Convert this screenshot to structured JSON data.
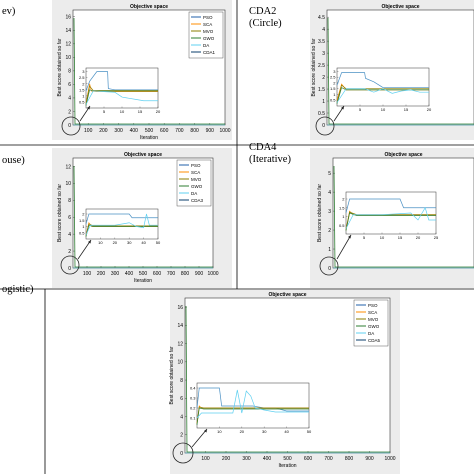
{
  "cells": [
    {
      "id": "cda1",
      "label_lines": [
        "ev)"
      ],
      "title": "Objective space",
      "xlabel": "Iteration",
      "ylabel": "Best score obtained so far",
      "yticks": [
        0,
        2,
        4,
        6,
        8,
        10,
        12,
        14,
        16
      ],
      "xticks": [
        100,
        200,
        300,
        400,
        500,
        600,
        700,
        800,
        900,
        1000
      ],
      "xlim": [
        0,
        1000
      ],
      "ylim": [
        0,
        17
      ],
      "legend": [
        "PSO",
        "SCA",
        "MVO",
        "GWO",
        "DA",
        "CDA1"
      ],
      "inset": {
        "xticks": [
          5,
          10,
          15,
          20
        ],
        "yticks": [
          0.5,
          1,
          1.5,
          2,
          2.5,
          3
        ],
        "xlim": [
          0,
          20
        ],
        "ylim": [
          0,
          3.3
        ],
        "series": [
          {
            "color": "#4a90c4",
            "x": [
              0,
              1,
              3,
              5,
              6,
              6.2,
              8,
              20
            ],
            "y": [
              1.4,
              2.2,
              3.0,
              3.0,
              3.0,
              1.6,
              1.5,
              1.5
            ]
          },
          {
            "color": "#ff8c00",
            "x": [
              0,
              1,
              1.5,
              3,
              20
            ],
            "y": [
              0.4,
              2.0,
              1.4,
              1.35,
              1.35
            ]
          },
          {
            "color": "#8b7d00",
            "x": [
              0,
              1,
              2,
              20
            ],
            "y": [
              0.3,
              1.8,
              1.45,
              1.45
            ]
          },
          {
            "color": "#2e7d32",
            "x": [
              0,
              1,
              2,
              20
            ],
            "y": [
              0.2,
              1.5,
              1.4,
              1.4
            ]
          },
          {
            "color": "#5fd0f0",
            "x": [
              0,
              2,
              8,
              10,
              12,
              14,
              16,
              20
            ],
            "y": [
              0.3,
              1.4,
              1.3,
              0.9,
              0.8,
              0.7,
              0.6,
              0.6
            ]
          }
        ]
      }
    },
    {
      "id": "cda2",
      "label_lines": [
        "CDA2",
        "(Circle)"
      ],
      "title": "Objective space",
      "xlabel": "",
      "ylabel": "Best score obtained so far",
      "yticks": [
        0,
        0.5,
        1,
        1.5,
        2,
        2.5,
        3,
        3.5,
        4,
        4.5
      ],
      "xticks": [],
      "xlim": [
        0,
        1000
      ],
      "ylim": [
        0,
        4.8
      ],
      "legend": [],
      "inset": {
        "xticks": [
          5,
          10,
          15,
          20
        ],
        "yticks": [
          0.5,
          1,
          1.5,
          2,
          2.5,
          3
        ],
        "xlim": [
          0,
          20
        ],
        "ylim": [
          0,
          3.3
        ],
        "series": [
          {
            "color": "#4a90c4",
            "x": [
              0,
              1,
              4,
              6,
              6.2,
              8,
              10,
              20
            ],
            "y": [
              1.8,
              2.9,
              2.9,
              2.9,
              2.4,
              2.1,
              1.6,
              1.6
            ]
          },
          {
            "color": "#ff8c00",
            "x": [
              0,
              1,
              2,
              20
            ],
            "y": [
              0.5,
              1.9,
              1.4,
              1.4
            ]
          },
          {
            "color": "#8b7d00",
            "x": [
              0,
              1,
              2,
              20
            ],
            "y": [
              0.3,
              1.8,
              1.5,
              1.5
            ]
          },
          {
            "color": "#2e7d32",
            "x": [
              0,
              1,
              2,
              20
            ],
            "y": [
              0.2,
              1.6,
              1.4,
              1.4
            ]
          },
          {
            "color": "#5fd0f0",
            "x": [
              0,
              2,
              6,
              8,
              10,
              12,
              14,
              16,
              18,
              20
            ],
            "y": [
              0.3,
              1.5,
              1.5,
              1.2,
              1.5,
              1.1,
              1.3,
              1.4,
              1.2,
              1.2
            ]
          }
        ]
      }
    },
    {
      "id": "cda3",
      "label_lines": [
        "ouse)"
      ],
      "title": "Objective space",
      "xlabel": "Iteration",
      "ylabel": "Best score obtained so far",
      "yticks": [
        0,
        2,
        4,
        6,
        8,
        10,
        12
      ],
      "xticks": [
        100,
        200,
        300,
        400,
        500,
        600,
        700,
        800,
        900,
        1000
      ],
      "xlim": [
        0,
        1000
      ],
      "ylim": [
        0,
        13
      ],
      "legend": [
        "PSO",
        "SCA",
        "MVO",
        "GWO",
        "DA",
        "CDA3"
      ],
      "inset": {
        "xticks": [
          10,
          20,
          30,
          40,
          50
        ],
        "yticks": [
          0.5,
          1,
          1.5,
          2
        ],
        "xlim": [
          0,
          50
        ],
        "ylim": [
          0,
          2.4
        ],
        "series": [
          {
            "color": "#4a90c4",
            "x": [
              0,
              2,
              30,
              32,
              40,
              50
            ],
            "y": [
              1.2,
              2.0,
              2.0,
              1.7,
              1.7,
              1.7
            ]
          },
          {
            "color": "#ff8c00",
            "x": [
              0,
              2,
              4,
              50
            ],
            "y": [
              0.3,
              1.3,
              1.0,
              1.0
            ]
          },
          {
            "color": "#8b7d00",
            "x": [
              0,
              2,
              5,
              50
            ],
            "y": [
              0.2,
              1.2,
              1.05,
              1.05
            ]
          },
          {
            "color": "#2e7d32",
            "x": [
              0,
              2,
              5,
              50
            ],
            "y": [
              0.2,
              1.1,
              1.0,
              1.0
            ]
          },
          {
            "color": "#5fd0f0",
            "x": [
              0,
              3,
              20,
              30,
              35,
              40,
              42,
              44,
              50
            ],
            "y": [
              0.3,
              1.1,
              1.1,
              1.3,
              1.0,
              0.9,
              2.0,
              1.1,
              1.1
            ]
          }
        ]
      }
    },
    {
      "id": "cda4",
      "label_lines": [
        "CDA4",
        "(Iterative)"
      ],
      "title": "Objective space",
      "xlabel": "",
      "ylabel": "Best score obtained so far",
      "yticks": [
        0,
        1,
        2,
        3,
        4,
        5
      ],
      "xticks": [],
      "xlim": [
        0,
        1000
      ],
      "ylim": [
        0,
        5.8
      ],
      "legend": [],
      "inset": {
        "xticks": [
          5,
          10,
          15,
          20,
          25
        ],
        "yticks": [
          0.5,
          1,
          1.5,
          2
        ],
        "xlim": [
          0,
          25
        ],
        "ylim": [
          0,
          2.4
        ],
        "series": [
          {
            "color": "#4a90c4",
            "x": [
              0,
              1,
              15,
              16,
              20,
              22,
              25
            ],
            "y": [
              1.2,
              2.0,
              2.0,
              1.5,
              1.5,
              1.5,
              1.5
            ]
          },
          {
            "color": "#ff8c00",
            "x": [
              0,
              1,
              2,
              25
            ],
            "y": [
              0.3,
              1.3,
              1.1,
              1.1
            ]
          },
          {
            "color": "#8b7d00",
            "x": [
              0,
              1,
              3,
              25
            ],
            "y": [
              0.2,
              1.25,
              1.1,
              1.1
            ]
          },
          {
            "color": "#2e7d32",
            "x": [
              0,
              1,
              3,
              25
            ],
            "y": [
              0.2,
              1.2,
              1.05,
              1.05
            ]
          },
          {
            "color": "#5fd0f0",
            "x": [
              0,
              2,
              10,
              18,
              20,
              22,
              23,
              25
            ],
            "y": [
              0.3,
              1.1,
              1.1,
              1.2,
              0.8,
              1.5,
              0.8,
              0.8
            ]
          }
        ]
      }
    },
    {
      "id": "cda5",
      "label_lines": [
        "ogistic)"
      ],
      "title": "Objective space",
      "xlabel": "Iteration",
      "ylabel": "Best score obtained so far",
      "yticks": [
        0,
        2,
        4,
        6,
        8,
        10,
        12,
        14,
        16
      ],
      "xticks": [
        100,
        200,
        300,
        400,
        500,
        600,
        700,
        800,
        900,
        1000
      ],
      "xlim": [
        0,
        1000
      ],
      "ylim": [
        0,
        17
      ],
      "legend": [
        "PSO",
        "SCA",
        "MVO",
        "GWO",
        "DA",
        "CDA5"
      ],
      "inset": {
        "xticks": [
          10,
          20,
          30,
          40,
          50
        ],
        "yticks": [
          0.1,
          0.2,
          0.3,
          0.4
        ],
        "xlim": [
          0,
          50
        ],
        "ylim": [
          0,
          0.45
        ],
        "series": [
          {
            "color": "#4a90c4",
            "x": [
              0,
              1,
              10,
              11,
              20,
              25,
              30,
              35,
              40,
              50
            ],
            "y": [
              0.2,
              0.4,
              0.4,
              0.22,
              0.22,
              0.22,
              0.2,
              0.2,
              0.17,
              0.17
            ]
          },
          {
            "color": "#ff8c00",
            "x": [
              0,
              1,
              2,
              50
            ],
            "y": [
              0.05,
              0.22,
              0.2,
              0.2
            ]
          },
          {
            "color": "#8b7d00",
            "x": [
              0,
              1,
              3,
              50
            ],
            "y": [
              0.04,
              0.21,
              0.2,
              0.2
            ]
          },
          {
            "color": "#2e7d32",
            "x": [
              0,
              1,
              3,
              50
            ],
            "y": [
              0.03,
              0.2,
              0.19,
              0.19
            ]
          },
          {
            "color": "#5fd0f0",
            "x": [
              0,
              2,
              10,
              16,
              18,
              20,
              22,
              24,
              26,
              30,
              35,
              50
            ],
            "y": [
              0.1,
              0.15,
              0.15,
              0.15,
              0.38,
              0.15,
              0.37,
              0.32,
              0.2,
              0.18,
              0.16,
              0.16
            ]
          }
        ]
      }
    }
  ],
  "legend_colors": [
    "#1f5fa8",
    "#ff8c00",
    "#8b7d00",
    "#2e7d32",
    "#5fd0f0",
    "#0a3d6b"
  ]
}
